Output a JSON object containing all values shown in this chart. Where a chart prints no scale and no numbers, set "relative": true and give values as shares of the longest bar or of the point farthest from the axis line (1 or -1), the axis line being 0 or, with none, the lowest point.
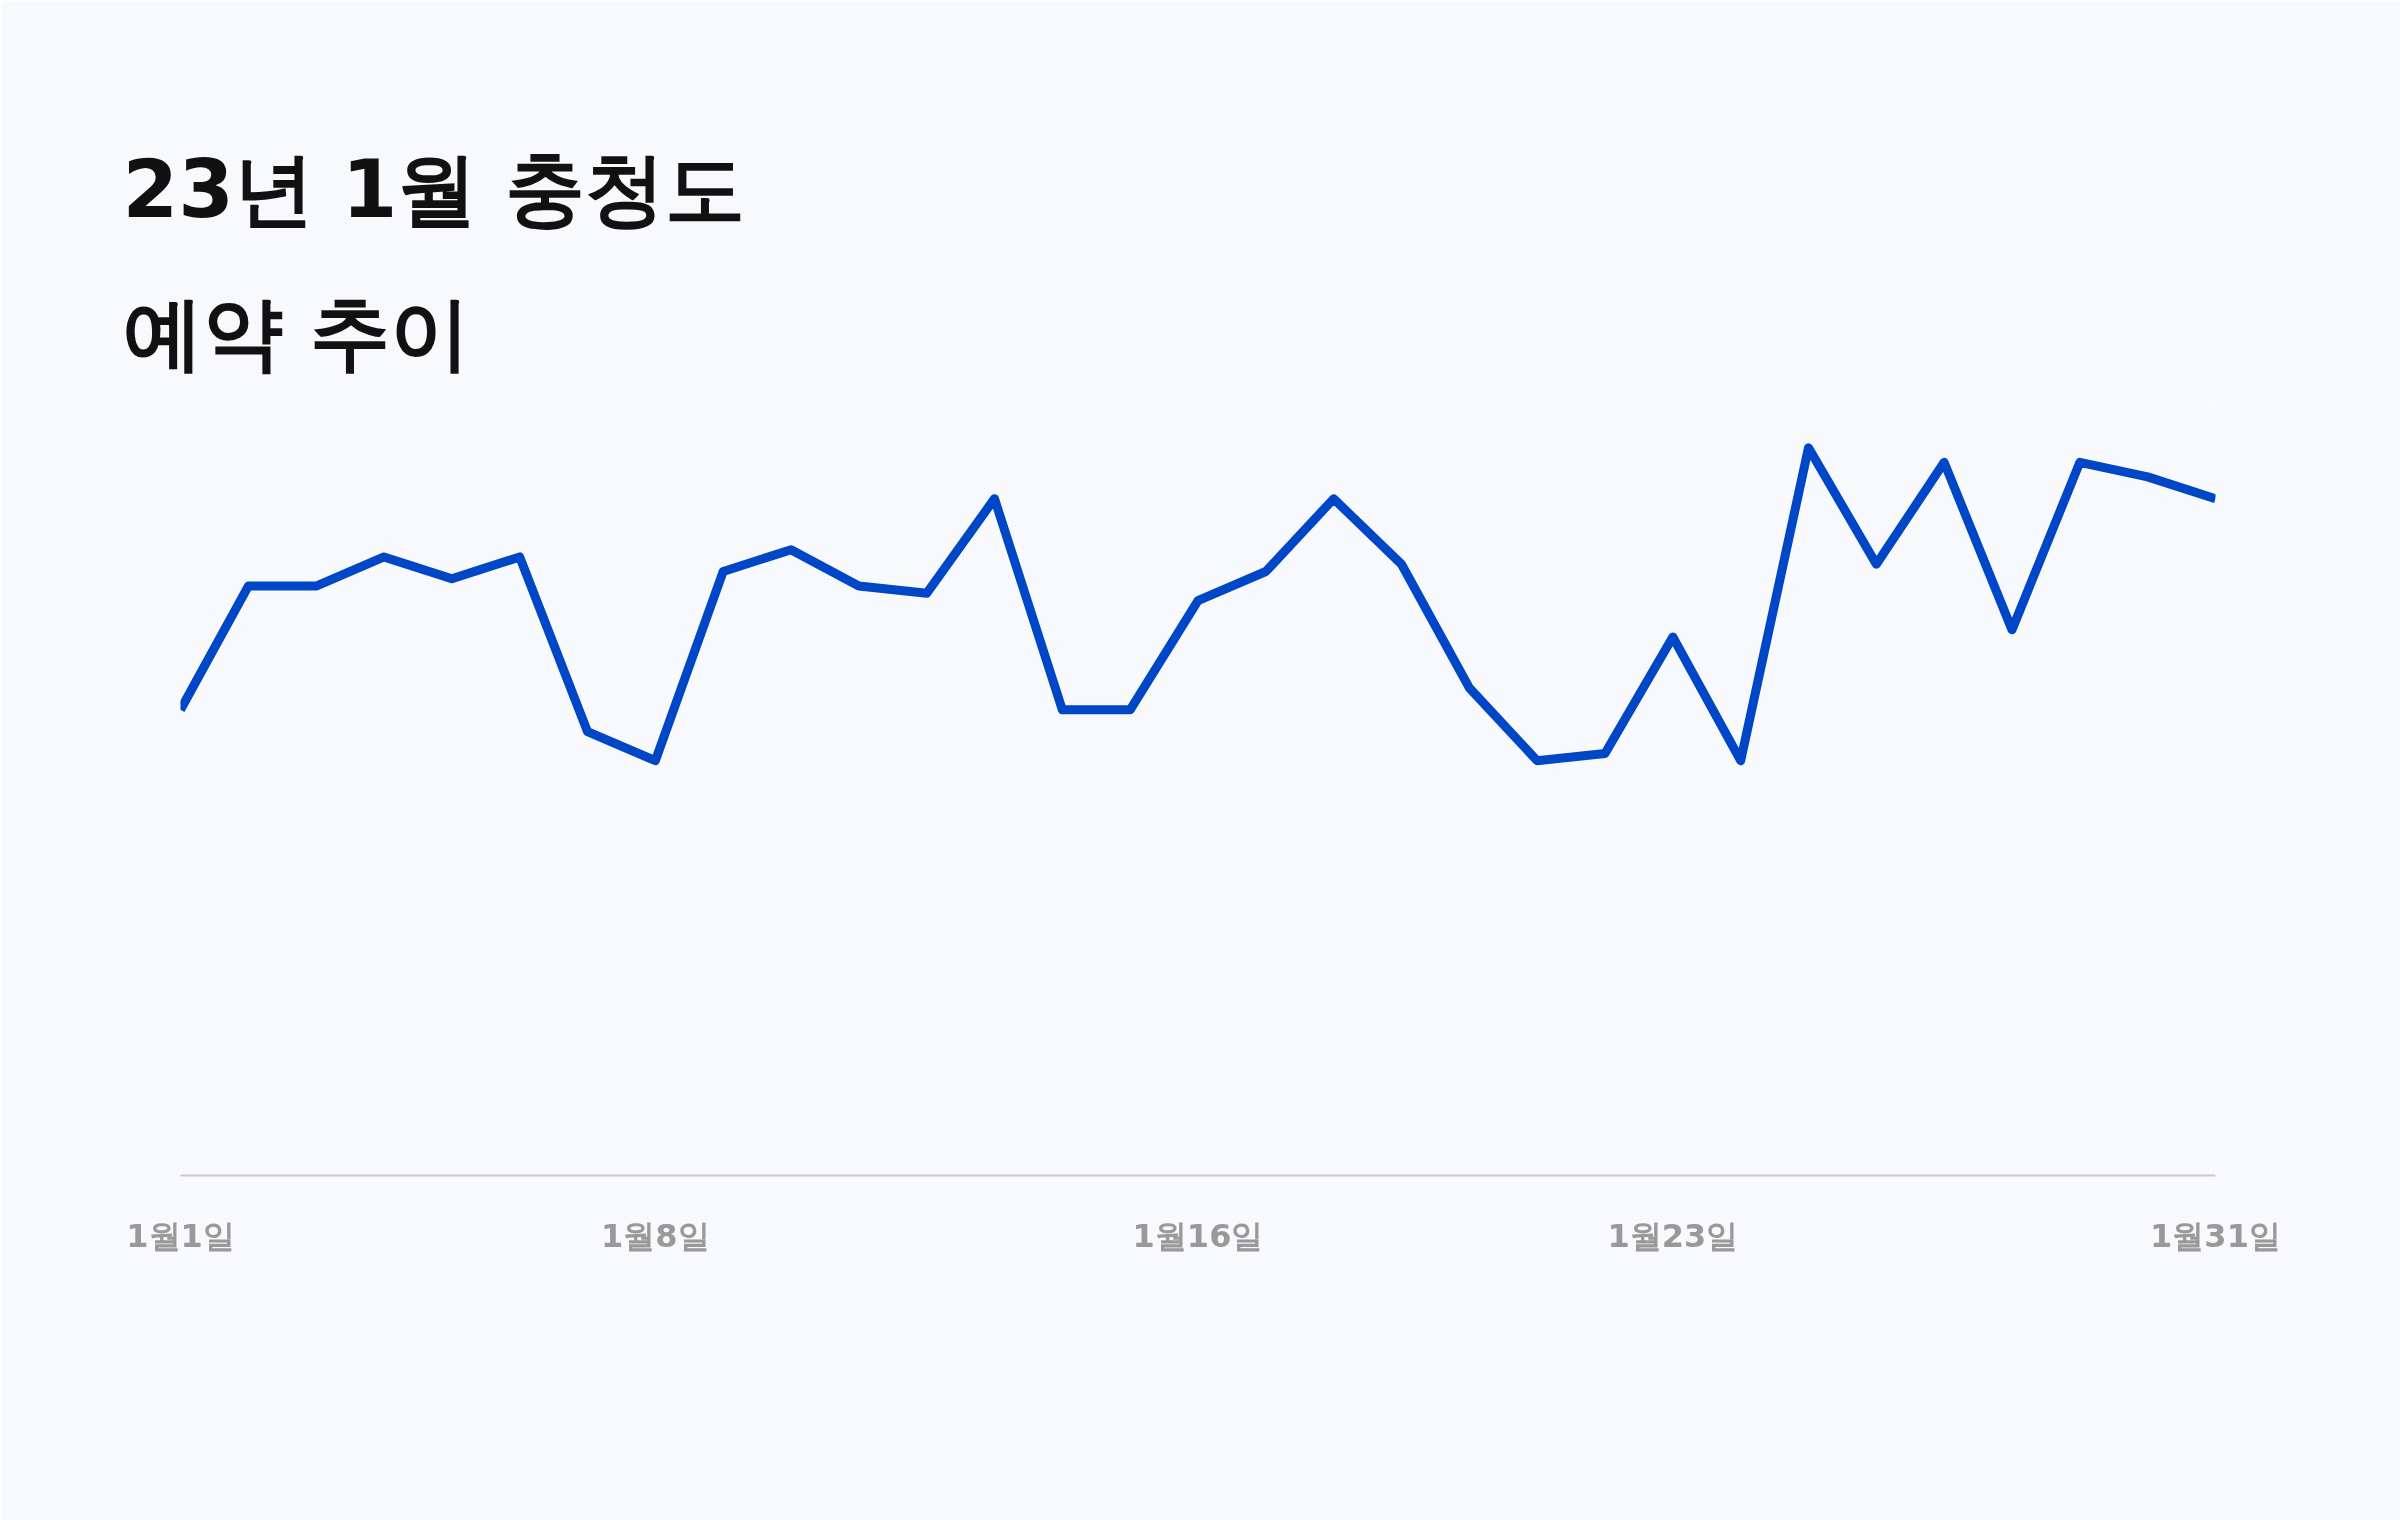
{
  "chart_data": {
    "type": "line",
    "title": "23년 1월 충청도\n예약 추이",
    "relative": true,
    "grid": false,
    "marker": "none",
    "line_style": "solid",
    "categories": [
      "1월1일",
      null,
      null,
      null,
      null,
      null,
      null,
      "1월8일",
      null,
      null,
      null,
      null,
      null,
      null,
      null,
      "1월16일",
      null,
      null,
      null,
      null,
      null,
      null,
      "1월23일",
      null,
      null,
      null,
      null,
      null,
      null,
      null,
      "1월31일"
    ],
    "series": [
      {
        "color": "#0047c8",
        "values": [
          0.64,
          0.81,
          0.81,
          0.85,
          0.82,
          0.85,
          0.61,
          0.57,
          0.83,
          0.86,
          0.81,
          0.8,
          0.93,
          0.64,
          0.64,
          0.79,
          0.83,
          0.93,
          0.84,
          0.67,
          0.57,
          0.58,
          0.74,
          0.57,
          1,
          0.84,
          0.98,
          0.75,
          0.98,
          0.96,
          0.93
        ]
      }
    ]
  }
}
